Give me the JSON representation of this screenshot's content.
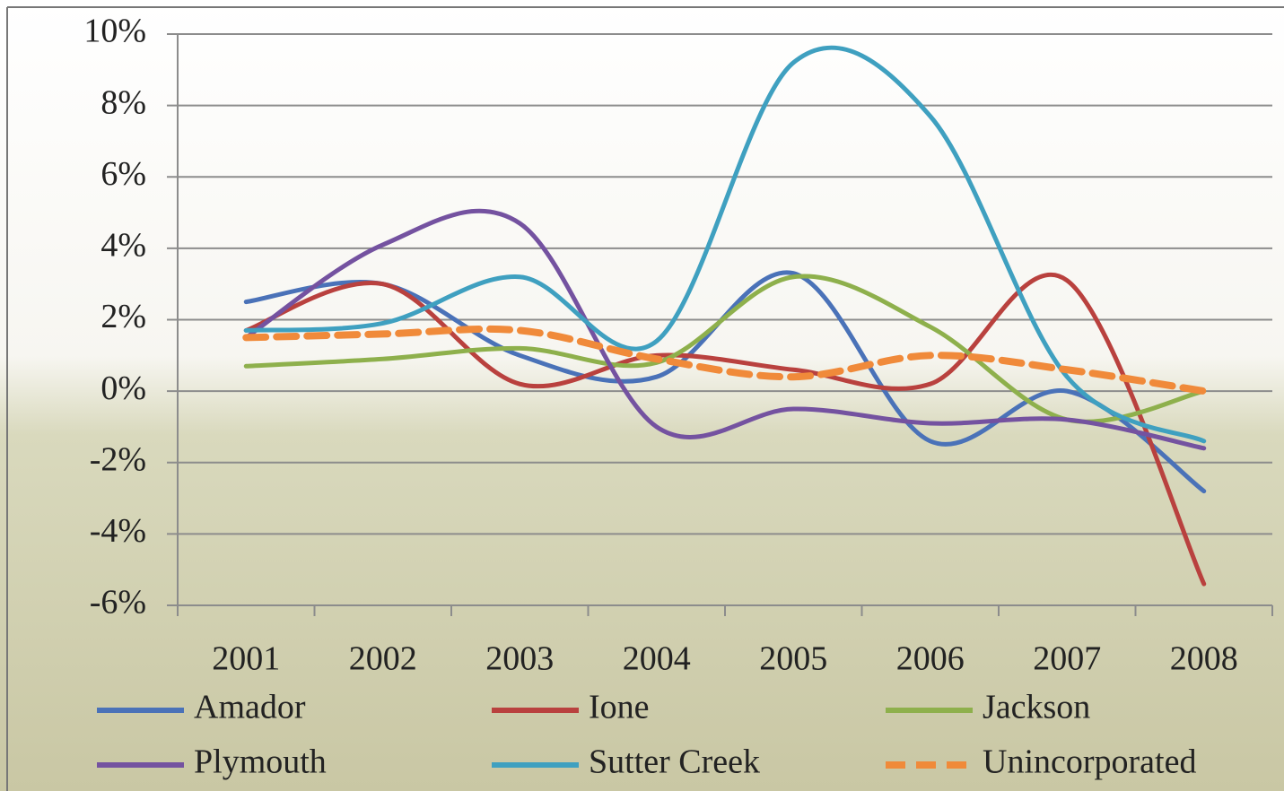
{
  "chart_data": {
    "type": "line",
    "categories": [
      "2001",
      "2002",
      "2003",
      "2004",
      "2005",
      "2006",
      "2007",
      "2008"
    ],
    "series": [
      {
        "name": "Amador",
        "color": "#4a72b8",
        "values": [
          2.5,
          3.0,
          1.0,
          0.4,
          3.3,
          -1.4,
          0.0,
          -2.8
        ]
      },
      {
        "name": "Ione",
        "color": "#b9413e",
        "values": [
          1.7,
          3.0,
          0.2,
          1.0,
          0.6,
          0.2,
          3.1,
          -5.4
        ]
      },
      {
        "name": "Jackson",
        "color": "#8eb04c",
        "values": [
          0.7,
          0.9,
          1.2,
          0.8,
          3.2,
          1.8,
          -0.8,
          0.0
        ]
      },
      {
        "name": "Plymouth",
        "color": "#7452a0",
        "values": [
          1.5,
          4.1,
          4.7,
          -1.0,
          -0.5,
          -0.9,
          -0.8,
          -1.6
        ]
      },
      {
        "name": "Sutter Creek",
        "color": "#3fa0c0",
        "values": [
          1.7,
          1.9,
          3.2,
          1.4,
          9.2,
          7.7,
          0.4,
          -1.4
        ]
      },
      {
        "name": "Unincorporated",
        "color": "#f08a3a",
        "dashed": true,
        "values": [
          1.5,
          1.6,
          1.7,
          0.9,
          0.4,
          1.0,
          0.6,
          0.0
        ]
      }
    ],
    "ylim": [
      -6,
      10
    ],
    "yticks": [
      {
        "value": -6,
        "label": "-6%"
      },
      {
        "value": -4,
        "label": "-4%"
      },
      {
        "value": -2,
        "label": "-2%"
      },
      {
        "value": 0,
        "label": "0%"
      },
      {
        "value": 2,
        "label": "2%"
      },
      {
        "value": 4,
        "label": "4%"
      },
      {
        "value": 6,
        "label": "6%"
      },
      {
        "value": 8,
        "label": "8%"
      },
      {
        "value": 10,
        "label": "10%"
      }
    ],
    "grid": true,
    "smooth": true,
    "legend": "bottom"
  }
}
